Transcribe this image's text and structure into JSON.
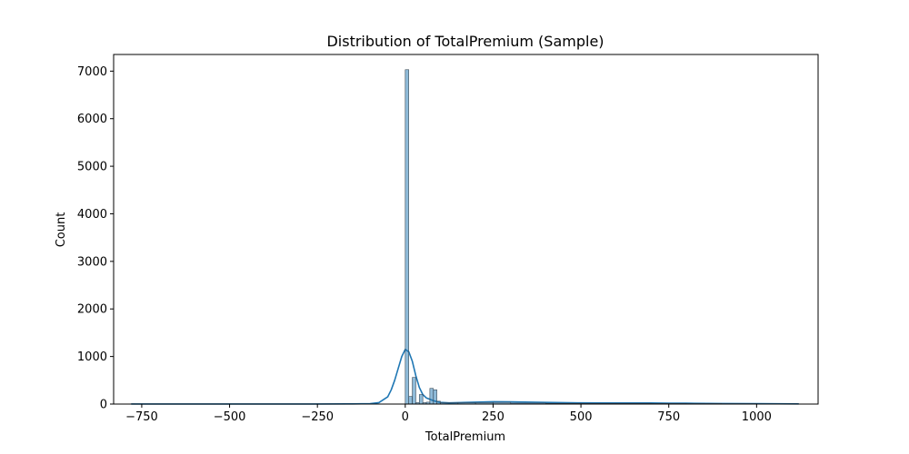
{
  "chart_data": {
    "type": "bar",
    "title": "Distribution of TotalPremium (Sample)",
    "xlabel": "TotalPremium",
    "ylabel": "Count",
    "xlim": [
      -830,
      1175
    ],
    "ylim": [
      0,
      7350
    ],
    "xticks": [
      -750,
      -500,
      -250,
      0,
      250,
      500,
      750,
      1000
    ],
    "xtick_labels": [
      "−750",
      "−500",
      "−250",
      "0",
      "250",
      "500",
      "750",
      "1000"
    ],
    "yticks": [
      0,
      1000,
      2000,
      3000,
      4000,
      5000,
      6000,
      7000
    ],
    "ytick_labels": [
      "0",
      "1000",
      "2000",
      "3000",
      "4000",
      "5000",
      "6000",
      "7000"
    ],
    "grid": false,
    "bar_color": "#1f77b4",
    "bar_fill_opacity": 0.5,
    "histogram": {
      "bin_left_edges": [
        -780,
        0,
        10,
        20,
        30,
        40,
        50,
        60,
        70,
        80,
        90,
        100,
        150,
        200,
        250,
        300,
        400,
        500,
        600,
        700,
        800,
        900,
        1000
      ],
      "bin_width": [
        10,
        10,
        10,
        10,
        10,
        10,
        10,
        10,
        10,
        10,
        10,
        50,
        50,
        50,
        50,
        100,
        100,
        100,
        100,
        100,
        100,
        100,
        120
      ],
      "counts": [
        5,
        7030,
        160,
        560,
        30,
        200,
        30,
        40,
        330,
        300,
        60,
        30,
        25,
        30,
        35,
        20,
        15,
        15,
        15,
        12,
        10,
        8,
        6
      ]
    },
    "kde": {
      "x": [
        -780,
        -500,
        -250,
        -150,
        -100,
        -75,
        -50,
        -40,
        -30,
        -20,
        -10,
        0,
        10,
        20,
        30,
        40,
        50,
        60,
        70,
        80,
        100,
        125,
        150,
        200,
        250,
        300,
        400,
        500,
        600,
        700,
        750,
        800,
        900,
        1000,
        1120
      ],
      "y": [
        2,
        2,
        2,
        3,
        8,
        30,
        150,
        300,
        500,
        750,
        1000,
        1150,
        1100,
        900,
        600,
        350,
        200,
        130,
        100,
        70,
        35,
        25,
        30,
        40,
        50,
        45,
        35,
        25,
        22,
        22,
        20,
        18,
        12,
        8,
        3
      ]
    }
  }
}
